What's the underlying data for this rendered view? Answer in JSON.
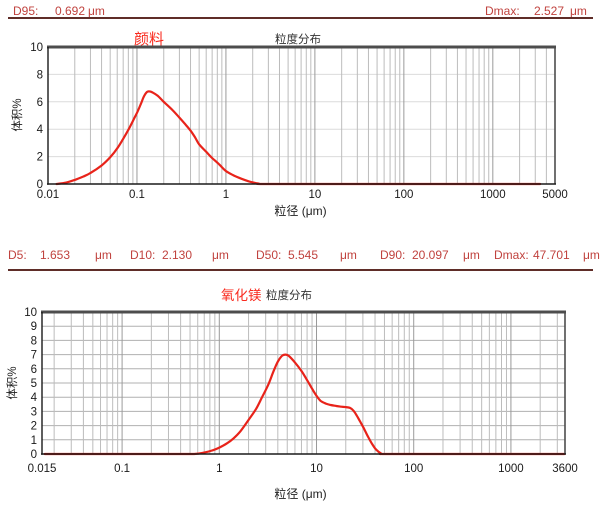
{
  "page": {
    "background": "#ffffff"
  },
  "colors": {
    "curve_red": "#e8231a",
    "title_red": "#f92a1e",
    "stats_red": "#c0423e",
    "separator_maroon": "#5f2d28",
    "grid_major": "#9a9a9a",
    "grid_minor": "#bcbcbc",
    "hgrid_light": "#dcdcdc",
    "hgrid_dark": "#b0b0b0",
    "axis_black": "#1a1a1a",
    "border_dark": "#4d4d4d",
    "tick_text": "#1a1a1a"
  },
  "stats_top": {
    "d95_label": "D95:",
    "d95_value": "0.692",
    "d95_unit": "μm",
    "dmax_label": "Dmax:",
    "dmax_value": "2.527",
    "dmax_unit": "μm"
  },
  "stats_mid": {
    "items": [
      {
        "label": "D5:",
        "value": "1.653",
        "unit": "μm"
      },
      {
        "label": "D10:",
        "value": "2.130",
        "unit": "μm"
      },
      {
        "label": "D50:",
        "value": "5.545",
        "unit": "μm"
      },
      {
        "label": "D90:",
        "value": "20.097",
        "unit": "μm"
      },
      {
        "label": "Dmax:",
        "value": "47.701",
        "unit": "μm"
      }
    ]
  },
  "chart_data": [
    {
      "type": "line",
      "sample_name": "颜料",
      "title": "粒度分布",
      "xlabel": "粒径 (μm)",
      "ylabel": "体积%",
      "xscale": "log",
      "xlim": [
        0.01,
        5000
      ],
      "ylim": [
        0,
        10
      ],
      "ytick_step": 2,
      "ygrid_step": 2,
      "ygrid_color": "#dcdcdc",
      "grid": true,
      "legend": "none",
      "xticks": [
        "0.01",
        "0.1",
        "1",
        "10",
        "100",
        "1000",
        "5000"
      ],
      "xtick_values": [
        0.01,
        0.1,
        1,
        10,
        100,
        1000,
        5000
      ],
      "series": [
        {
          "name": "颜料",
          "color": "#e8231a",
          "points": [
            [
              0.0125,
              0
            ],
            [
              0.016,
              0.1
            ],
            [
              0.02,
              0.3
            ],
            [
              0.025,
              0.55
            ],
            [
              0.03,
              0.8
            ],
            [
              0.04,
              1.35
            ],
            [
              0.05,
              1.95
            ],
            [
              0.06,
              2.6
            ],
            [
              0.07,
              3.3
            ],
            [
              0.08,
              3.95
            ],
            [
              0.09,
              4.6
            ],
            [
              0.1,
              5.2
            ],
            [
              0.11,
              5.8
            ],
            [
              0.12,
              6.4
            ],
            [
              0.13,
              6.72
            ],
            [
              0.14,
              6.75
            ],
            [
              0.15,
              6.68
            ],
            [
              0.17,
              6.45
            ],
            [
              0.2,
              6.0
            ],
            [
              0.25,
              5.4
            ],
            [
              0.3,
              4.85
            ],
            [
              0.35,
              4.35
            ],
            [
              0.4,
              3.9
            ],
            [
              0.45,
              3.4
            ],
            [
              0.5,
              2.9
            ],
            [
              0.6,
              2.35
            ],
            [
              0.7,
              1.9
            ],
            [
              0.85,
              1.4
            ],
            [
              1.0,
              0.95
            ],
            [
              1.2,
              0.65
            ],
            [
              1.5,
              0.38
            ],
            [
              1.8,
              0.2
            ],
            [
              2.1,
              0.09
            ],
            [
              2.35,
              0.03
            ],
            [
              2.53,
              0
            ],
            [
              10,
              0
            ],
            [
              100,
              0
            ],
            [
              1000,
              0
            ],
            [
              3400,
              0
            ]
          ]
        }
      ]
    },
    {
      "type": "line",
      "sample_name": "氧化镁",
      "title": "粒度分布",
      "xlabel": "粒径 (μm)",
      "ylabel": "体积%",
      "xscale": "log",
      "xlim": [
        0.015,
        3600
      ],
      "ylim": [
        0,
        10
      ],
      "ytick_step": 1,
      "ygrid_step": 1,
      "ygrid_color": "#b0b0b0",
      "grid": true,
      "legend": "none",
      "xticks": [
        "0.015",
        "0.1",
        "1",
        "10",
        "100",
        "1000",
        "3600"
      ],
      "xtick_values": [
        0.015,
        0.1,
        1,
        10,
        100,
        1000,
        3600
      ],
      "series": [
        {
          "name": "氧化镁",
          "color": "#e8231a",
          "points": [
            [
              0.016,
              0
            ],
            [
              0.1,
              0
            ],
            [
              0.3,
              0
            ],
            [
              0.55,
              0
            ],
            [
              0.7,
              0.1
            ],
            [
              0.85,
              0.25
            ],
            [
              1.0,
              0.45
            ],
            [
              1.2,
              0.75
            ],
            [
              1.4,
              1.1
            ],
            [
              1.65,
              1.6
            ],
            [
              2.0,
              2.4
            ],
            [
              2.4,
              3.2
            ],
            [
              2.8,
              4.1
            ],
            [
              3.2,
              4.9
            ],
            [
              3.6,
              5.8
            ],
            [
              4.0,
              6.5
            ],
            [
              4.4,
              6.9
            ],
            [
              4.8,
              7.0
            ],
            [
              5.2,
              6.9
            ],
            [
              6.0,
              6.45
            ],
            [
              7.0,
              5.85
            ],
            [
              8.0,
              5.2
            ],
            [
              9.0,
              4.6
            ],
            [
              10,
              4.1
            ],
            [
              11,
              3.75
            ],
            [
              12.5,
              3.55
            ],
            [
              14,
              3.45
            ],
            [
              16,
              3.38
            ],
            [
              18,
              3.33
            ],
            [
              20,
              3.3
            ],
            [
              22,
              3.25
            ],
            [
              24,
              3.05
            ],
            [
              26,
              2.7
            ],
            [
              28,
              2.3
            ],
            [
              31,
              1.75
            ],
            [
              34,
              1.2
            ],
            [
              37,
              0.75
            ],
            [
              40,
              0.4
            ],
            [
              43,
              0.18
            ],
            [
              46,
              0.05
            ],
            [
              47.7,
              0
            ],
            [
              100,
              0
            ],
            [
              1000,
              0
            ],
            [
              3550,
              0
            ]
          ]
        }
      ]
    }
  ]
}
